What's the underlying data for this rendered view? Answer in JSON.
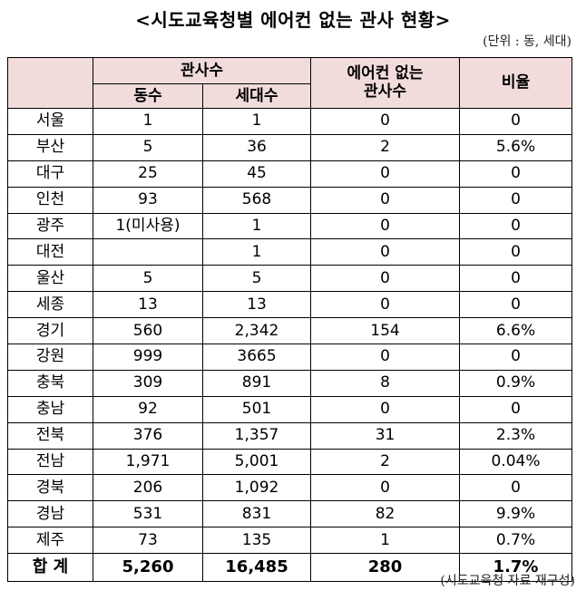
{
  "title": "<시도교육청별 에어컨 없는 관사 현황>",
  "unit_note": "(단위 : 동, 세대)",
  "source_note": "(시도교육청 자료 재구성)",
  "table": {
    "header": {
      "group_label": "관사수",
      "col_dong": "동수",
      "col_sedae": "세대수",
      "col_no_ac_line1": "에어컨 없는",
      "col_no_ac_line2": "관사수",
      "col_ratio": "비율"
    },
    "rows": [
      {
        "region": "서울",
        "dong": "1",
        "sedae": "1",
        "no_ac": "0",
        "ratio": "0"
      },
      {
        "region": "부산",
        "dong": "5",
        "sedae": "36",
        "no_ac": "2",
        "ratio": "5.6%"
      },
      {
        "region": "대구",
        "dong": "25",
        "sedae": "45",
        "no_ac": "0",
        "ratio": "0"
      },
      {
        "region": "인천",
        "dong": "93",
        "sedae": "568",
        "no_ac": "0",
        "ratio": "0"
      },
      {
        "region": "광주",
        "dong": "1(미사용)",
        "sedae": "1",
        "no_ac": "0",
        "ratio": "0"
      },
      {
        "region": "대전",
        "dong": "",
        "sedae": "1",
        "no_ac": "0",
        "ratio": "0"
      },
      {
        "region": "울산",
        "dong": "5",
        "sedae": "5",
        "no_ac": "0",
        "ratio": "0"
      },
      {
        "region": "세종",
        "dong": "13",
        "sedae": "13",
        "no_ac": "0",
        "ratio": "0"
      },
      {
        "region": "경기",
        "dong": "560",
        "sedae": "2,342",
        "no_ac": "154",
        "ratio": "6.6%"
      },
      {
        "region": "강원",
        "dong": "999",
        "sedae": "3665",
        "no_ac": "0",
        "ratio": "0"
      },
      {
        "region": "충북",
        "dong": "309",
        "sedae": "891",
        "no_ac": "8",
        "ratio": "0.9%"
      },
      {
        "region": "충남",
        "dong": "92",
        "sedae": "501",
        "no_ac": "0",
        "ratio": "0"
      },
      {
        "region": "전북",
        "dong": "376",
        "sedae": "1,357",
        "no_ac": "31",
        "ratio": "2.3%"
      },
      {
        "region": "전남",
        "dong": "1,971",
        "sedae": "5,001",
        "no_ac": "2",
        "ratio": "0.04%"
      },
      {
        "region": "경북",
        "dong": "206",
        "sedae": "1,092",
        "no_ac": "0",
        "ratio": "0"
      },
      {
        "region": "경남",
        "dong": "531",
        "sedae": "831",
        "no_ac": "82",
        "ratio": "9.9%"
      },
      {
        "region": "제주",
        "dong": "73",
        "sedae": "135",
        "no_ac": "1",
        "ratio": "0.7%"
      }
    ],
    "total": {
      "region": "합 계",
      "dong": "5,260",
      "sedae": "16,485",
      "no_ac": "280",
      "ratio": "1.7%"
    }
  },
  "colors": {
    "header_bg": "#f2dcdb",
    "border": "#000000"
  }
}
